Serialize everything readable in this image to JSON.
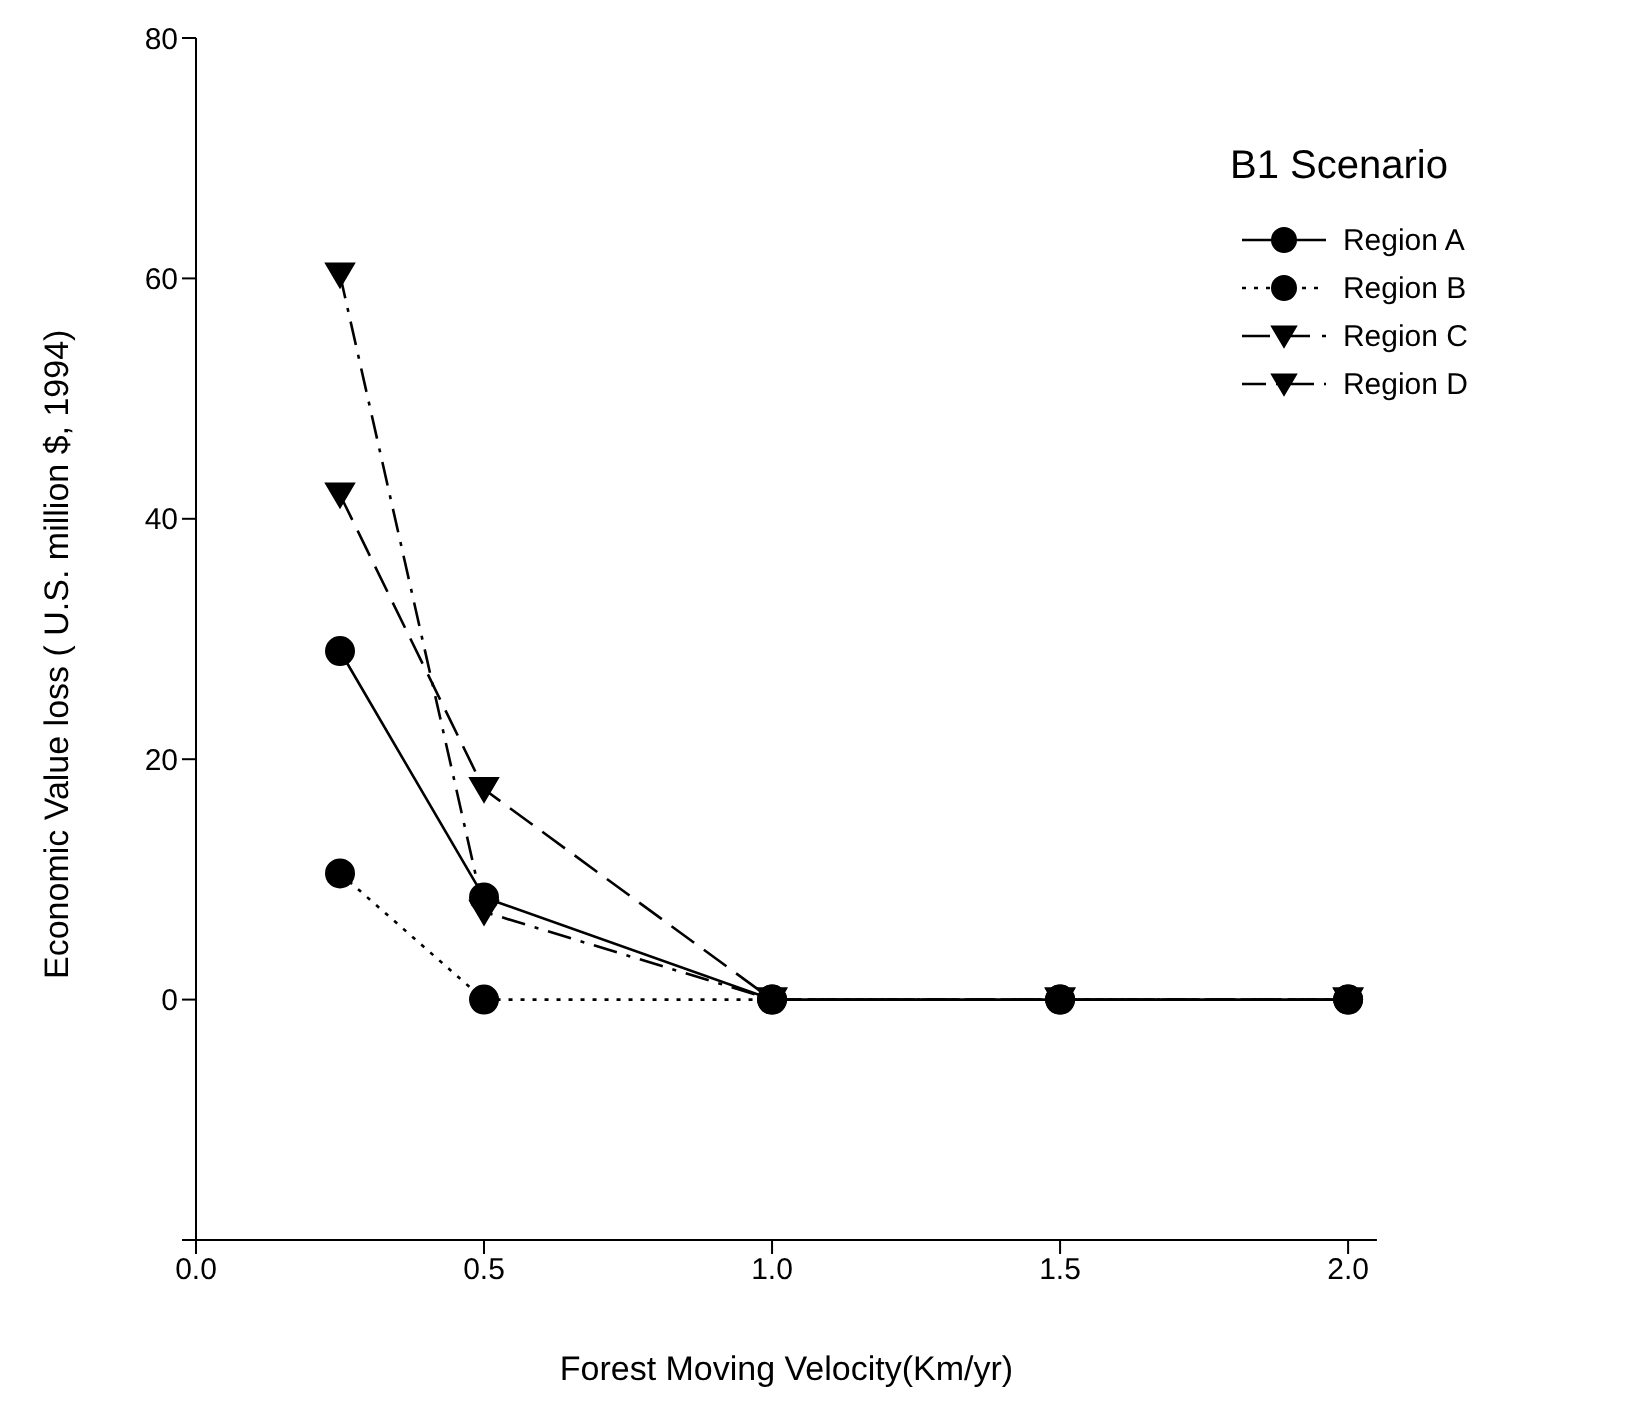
{
  "chart_data": {
    "type": "line",
    "title": "B1 Scenario",
    "xlabel": "Forest Moving Velocity(Km/yr)",
    "ylabel": "Economic Value loss ( U.S. million $, 1994)",
    "x": [
      0.25,
      0.5,
      1.0,
      1.5,
      2.0
    ],
    "series": [
      {
        "name": "Region A",
        "color": "#000000",
        "marker": "circle",
        "line_style": "solid",
        "values": [
          29,
          8.5,
          0,
          0,
          0
        ]
      },
      {
        "name": "Region B",
        "color": "#000000",
        "marker": "circle",
        "line_style": "dotted",
        "values": [
          10.5,
          0,
          0,
          0,
          0
        ]
      },
      {
        "name": "Region C",
        "color": "#000000",
        "marker": "triangle",
        "line_style": "dashed",
        "values": [
          42,
          17.5,
          0,
          0,
          0
        ]
      },
      {
        "name": "Region D",
        "color": "#000000",
        "marker": "triangle",
        "line_style": "dashdot",
        "values": [
          60.3,
          7.3,
          0,
          0,
          0
        ]
      }
    ],
    "xlim": [
      0,
      2.05
    ],
    "xticks": [
      {
        "value": 0,
        "label": "0.0"
      },
      {
        "value": 0.5,
        "label": "0.5"
      },
      {
        "value": 1,
        "label": "1.0"
      },
      {
        "value": 1.5,
        "label": "1.5"
      },
      {
        "value": 2,
        "label": "2.0"
      }
    ],
    "ylim": [
      -20,
      80
    ],
    "yticks": [
      {
        "value": -20,
        "label": null
      },
      0,
      20,
      40,
      60,
      80
    ],
    "grid": false,
    "legend": "top right"
  }
}
